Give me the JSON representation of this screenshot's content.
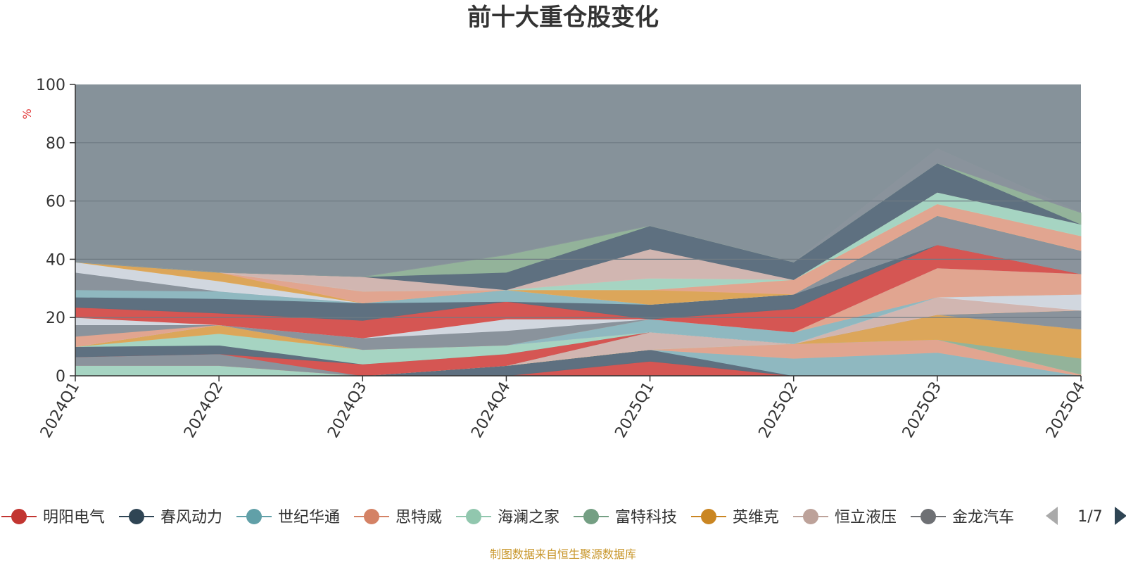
{
  "chart_data": {
    "type": "area",
    "stacked": true,
    "title": "前十大重仓股变化",
    "ylabel": "%",
    "ylim": [
      0,
      100
    ],
    "yticks": [
      0,
      20,
      40,
      60,
      80,
      100
    ],
    "categories": [
      "2024Q1",
      "2024Q2",
      "2024Q3",
      "2024Q4",
      "2025Q1",
      "2025Q2",
      "2025Q3",
      "2025Q4"
    ],
    "series": [
      {
        "name": "明阳电气",
        "color": "#d9534f",
        "values": [
          0,
          0,
          0,
          0,
          5,
          0,
          0,
          0
        ]
      },
      {
        "name": "春风动力",
        "color": "#5c6f7e",
        "values": [
          0,
          0,
          0,
          3.5,
          4,
          0,
          0,
          0
        ]
      },
      {
        "name": "世纪华通",
        "color": "#8fbac2",
        "values": [
          0,
          0,
          0,
          0,
          0,
          6,
          8,
          0
        ]
      },
      {
        "name": "思特威",
        "color": "#e6a68f",
        "values": [
          0,
          0,
          0,
          0,
          0,
          5,
          4.5,
          0.5
        ]
      },
      {
        "name": "海澜之家",
        "color": "#a8d8c4",
        "values": [
          3.5,
          3.5,
          0,
          0,
          0,
          0,
          0,
          0
        ]
      },
      {
        "name": "富特科技",
        "color": "#93b59a",
        "values": [
          0,
          0,
          0,
          0,
          0,
          0,
          0,
          5.5
        ]
      },
      {
        "name": "英维克",
        "color": "#e0a856",
        "values": [
          0,
          0,
          0,
          0,
          0,
          0,
          8.5,
          10
        ]
      },
      {
        "name": "恒立液压",
        "color": "#d5b8b2",
        "values": [
          0,
          0,
          0,
          0,
          6,
          0,
          0,
          0
        ]
      },
      {
        "name": "金龙汽车",
        "color": "#8a949c",
        "values": [
          3,
          4,
          0,
          0,
          0,
          0,
          0,
          6.5
        ]
      },
      {
        "name": "",
        "color": "#d9534f",
        "values": [
          0,
          0,
          4,
          4,
          0,
          0,
          0,
          0
        ]
      },
      {
        "name": "",
        "color": "#5c6f7e",
        "values": [
          3.5,
          3,
          0,
          0,
          0,
          0,
          0,
          0
        ]
      },
      {
        "name": "",
        "color": "#a8d8c4",
        "values": [
          0,
          4,
          5,
          3,
          0,
          0,
          0,
          0
        ]
      },
      {
        "name": "",
        "color": "#e0a856",
        "values": [
          0,
          3,
          0,
          0,
          0,
          0,
          0,
          0
        ]
      },
      {
        "name": "",
        "color": "#d5b8b2",
        "values": [
          0,
          0,
          0,
          0,
          0,
          0,
          6,
          0
        ]
      },
      {
        "name": "",
        "color": "#d5dbe3",
        "values": [
          0,
          0,
          0,
          0,
          0,
          0,
          0,
          5.5
        ]
      },
      {
        "name": "",
        "color": "#8fbac2",
        "values": [
          0,
          0,
          0,
          0,
          4.5,
          4,
          0,
          0
        ]
      },
      {
        "name": "",
        "color": "#e6a68f",
        "values": [
          3.5,
          0,
          0,
          0,
          0,
          0,
          10,
          7
        ]
      },
      {
        "name": "",
        "color": "#8a949c",
        "values": [
          4,
          0,
          4,
          5,
          0,
          0,
          0,
          0
        ]
      },
      {
        "name": "",
        "color": "#d5dbe3",
        "values": [
          2.5,
          0,
          0,
          4,
          0,
          0,
          0,
          0
        ]
      },
      {
        "name": "",
        "color": "#d9534f",
        "values": [
          3.5,
          4,
          6,
          6,
          0,
          8,
          8,
          0
        ]
      },
      {
        "name": "",
        "color": "#5c6f7e",
        "values": [
          3.5,
          5,
          6,
          0,
          5,
          5,
          0,
          0
        ]
      },
      {
        "name": "",
        "color": "#8fbac2",
        "values": [
          2.5,
          2.5,
          0,
          4,
          0,
          0,
          0,
          0
        ]
      },
      {
        "name": "",
        "color": "#8a949c",
        "values": [
          6,
          0,
          0,
          0,
          0,
          0,
          10,
          8
        ]
      },
      {
        "name": "",
        "color": "#d5dbe3",
        "values": [
          3.5,
          3.5,
          0,
          0,
          0,
          0,
          0,
          0
        ]
      },
      {
        "name": "",
        "color": "#e0a856",
        "values": [
          0,
          3,
          0,
          0,
          5,
          0,
          0,
          0
        ]
      },
      {
        "name": "",
        "color": "#e6a68f",
        "values": [
          0,
          0,
          4,
          0,
          0,
          5,
          4,
          5
        ]
      },
      {
        "name": "",
        "color": "#a8d8c4",
        "values": [
          0,
          0,
          0,
          0,
          4,
          0,
          4,
          4
        ]
      },
      {
        "name": "",
        "color": "#d5b8b2",
        "values": [
          0,
          0,
          5,
          0,
          10,
          0,
          0,
          0
        ]
      },
      {
        "name": "",
        "color": "#5c6f7e",
        "values": [
          0,
          0,
          0,
          6,
          8,
          6,
          10,
          0
        ]
      },
      {
        "name": "",
        "color": "#93b59a",
        "values": [
          0,
          0,
          0,
          6,
          0,
          0,
          0,
          4
        ]
      },
      {
        "name": "",
        "color": "#8a949c",
        "values": [
          0,
          0,
          0,
          0,
          0,
          0,
          5,
          0
        ]
      }
    ],
    "legend": {
      "placement": "bottom",
      "visible_entries": [
        {
          "name": "明阳电气",
          "color": "#c23531",
          "label": "明阳电气"
        },
        {
          "name": "春风动力",
          "color": "#2f4554",
          "label": "春风动力"
        },
        {
          "name": "世纪华通",
          "color": "#61a0a8",
          "label": "世纪华通"
        },
        {
          "name": "思特威",
          "color": "#d48265",
          "label": "思特威"
        },
        {
          "name": "海澜之家",
          "color": "#91c7ae",
          "label": "海澜之家"
        },
        {
          "name": "富特科技",
          "color": "#749f83",
          "label": "富特科技"
        },
        {
          "name": "英维克",
          "color": "#ca8622",
          "label": "英维克"
        },
        {
          "name": "恒立液压",
          "color": "#bda29a",
          "label": "恒立液压"
        },
        {
          "name": "金龙汽车",
          "color": "#6e7074",
          "label": "金龙汽车"
        }
      ],
      "page_label": "1/7"
    }
  },
  "colors": {
    "background_area": "#86929a",
    "axis": "#333333",
    "grid": "#6f7b83",
    "pager_disabled": "#aaaaaa",
    "pager_active": "#2f4554"
  },
  "source_note": "制图数据来自恒生聚源数据库"
}
